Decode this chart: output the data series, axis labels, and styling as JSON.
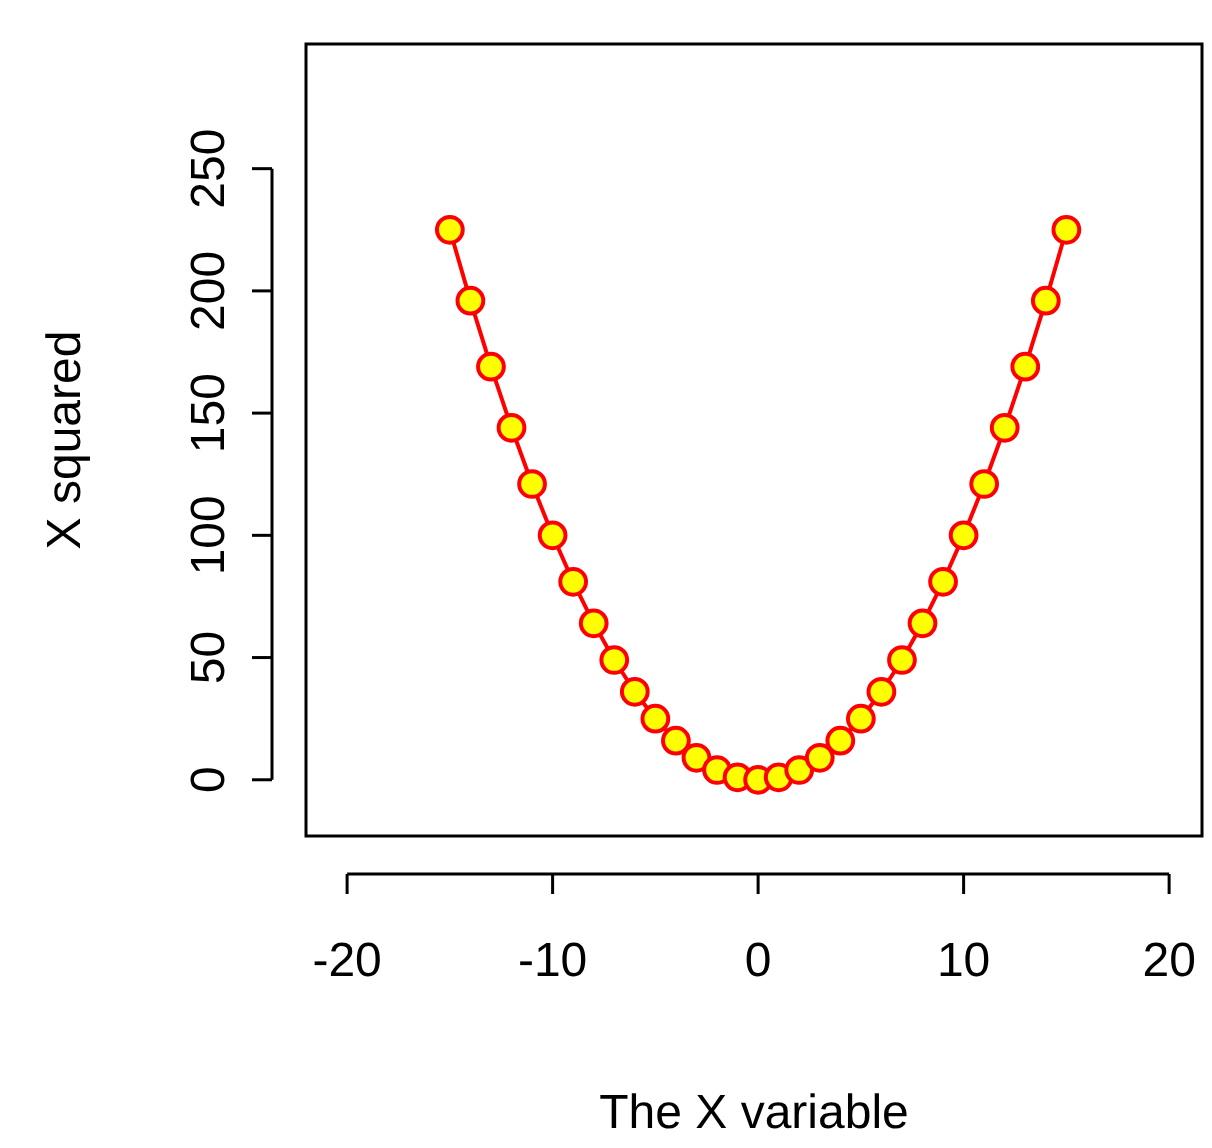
{
  "chart_data": {
    "type": "line",
    "xlabel": "The X variable",
    "ylabel": "X squared",
    "x": [
      -15,
      -14,
      -13,
      -12,
      -11,
      -10,
      -9,
      -8,
      -7,
      -6,
      -5,
      -4,
      -3,
      -2,
      -1,
      0,
      1,
      2,
      3,
      4,
      5,
      6,
      7,
      8,
      9,
      10,
      11,
      12,
      13,
      14,
      15
    ],
    "series": [
      {
        "color": "#ff0000",
        "values": [
          225,
          196,
          169,
          144,
          121,
          100,
          81,
          64,
          49,
          36,
          25,
          16,
          9,
          4,
          1,
          0,
          1,
          4,
          9,
          16,
          25,
          36,
          49,
          64,
          81,
          100,
          121,
          144,
          169,
          196,
          225
        ]
      }
    ],
    "xlim": [
      -22,
      21.6
    ],
    "xticks": [
      -20,
      -10,
      0,
      10,
      20
    ],
    "ylim": [
      -23,
      301
    ],
    "yticks": [
      0,
      50,
      100,
      150,
      200,
      250
    ],
    "marker": "circle",
    "line_style": "solid",
    "grid": false
  }
}
